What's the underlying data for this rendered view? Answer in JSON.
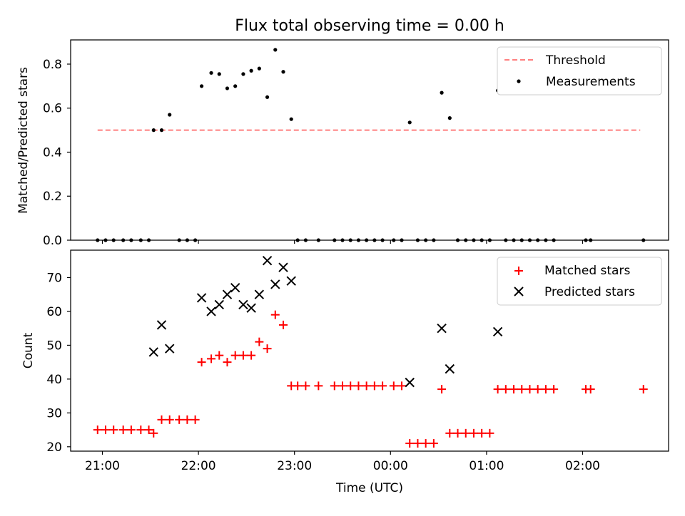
{
  "title": "Flux total observing time = 0.00 h",
  "xlabel": "Time (UTC)",
  "x_ticks": [
    "21:00",
    "22:00",
    "23:00",
    "00:00",
    "01:00",
    "02:00"
  ],
  "chart_data": [
    {
      "type": "scatter",
      "title": "Flux total observing time = 0.00 h",
      "ylabel": "Matched/Predicted stars",
      "xlabel": "",
      "ylim": [
        0,
        0.91
      ],
      "yticks": [
        "0.0",
        "0.2",
        "0.4",
        "0.6",
        "0.8"
      ],
      "legend": {
        "placement": "top-right",
        "entries": [
          "Threshold",
          "Measurements"
        ]
      },
      "threshold": {
        "name": "Threshold",
        "value": 0.5,
        "x_start": "20:57",
        "x_end": "02:36",
        "color": "#ff7f7f",
        "style": "dashed"
      },
      "series": [
        {
          "name": "Measurements",
          "marker": "dot",
          "color": "#000000",
          "points": [
            [
              "20:57",
              0
            ],
            [
              "21:02",
              0
            ],
            [
              "21:07",
              0
            ],
            [
              "21:13",
              0
            ],
            [
              "21:18",
              0
            ],
            [
              "21:24",
              0
            ],
            [
              "21:29",
              0
            ],
            [
              "21:32",
              0.5
            ],
            [
              "21:37",
              0.5
            ],
            [
              "21:42",
              0.57
            ],
            [
              "21:48",
              0
            ],
            [
              "21:53",
              0
            ],
            [
              "21:58",
              0
            ],
            [
              "22:02",
              0.7
            ],
            [
              "22:08",
              0.76
            ],
            [
              "22:13",
              0.755
            ],
            [
              "22:18",
              0.69
            ],
            [
              "22:23",
              0.7
            ],
            [
              "22:28",
              0.755
            ],
            [
              "22:33",
              0.77
            ],
            [
              "22:38",
              0.78
            ],
            [
              "22:43",
              0.65
            ],
            [
              "22:48",
              0.865
            ],
            [
              "22:53",
              0.765
            ],
            [
              "22:58",
              0.55
            ],
            [
              "23:02",
              0
            ],
            [
              "23:07",
              0
            ],
            [
              "23:15",
              0
            ],
            [
              "23:25",
              0
            ],
            [
              "23:30",
              0
            ],
            [
              "23:35",
              0
            ],
            [
              "23:40",
              0
            ],
            [
              "23:45",
              0
            ],
            [
              "23:50",
              0
            ],
            [
              "23:55",
              0
            ],
            [
              "00:02",
              0
            ],
            [
              "00:07",
              0
            ],
            [
              "00:12",
              0.535
            ],
            [
              "00:17",
              0
            ],
            [
              "00:22",
              0
            ],
            [
              "00:27",
              0
            ],
            [
              "00:32",
              0.67
            ],
            [
              "00:37",
              0.555
            ],
            [
              "00:42",
              0
            ],
            [
              "00:47",
              0
            ],
            [
              "00:52",
              0
            ],
            [
              "00:57",
              0
            ],
            [
              "01:02",
              0
            ],
            [
              "01:07",
              0.68
            ],
            [
              "01:12",
              0
            ],
            [
              "01:17",
              0
            ],
            [
              "01:22",
              0
            ],
            [
              "01:27",
              0
            ],
            [
              "01:32",
              0
            ],
            [
              "01:37",
              0
            ],
            [
              "01:42",
              0
            ],
            [
              "02:02",
              0
            ],
            [
              "02:05",
              0
            ],
            [
              "02:38",
              0
            ]
          ]
        }
      ]
    },
    {
      "type": "scatter",
      "title": "",
      "ylabel": "Count",
      "xlabel": "Time (UTC)",
      "ylim": [
        18.7,
        78.1
      ],
      "yticks": [
        "20",
        "30",
        "40",
        "50",
        "60",
        "70"
      ],
      "legend": {
        "placement": "top-right",
        "entries": [
          "Matched stars",
          "Predicted stars"
        ]
      },
      "series": [
        {
          "name": "Matched stars",
          "marker": "plus",
          "color": "#ff0000",
          "points": [
            [
              "20:57",
              25
            ],
            [
              "21:02",
              25
            ],
            [
              "21:07",
              25
            ],
            [
              "21:13",
              25
            ],
            [
              "21:18",
              25
            ],
            [
              "21:24",
              25
            ],
            [
              "21:29",
              25
            ],
            [
              "21:32",
              24
            ],
            [
              "21:37",
              28
            ],
            [
              "21:42",
              28
            ],
            [
              "21:48",
              28
            ],
            [
              "21:53",
              28
            ],
            [
              "21:58",
              28
            ],
            [
              "22:02",
              45
            ],
            [
              "22:08",
              46
            ],
            [
              "22:13",
              47
            ],
            [
              "22:18",
              45
            ],
            [
              "22:23",
              47
            ],
            [
              "22:28",
              47
            ],
            [
              "22:33",
              47
            ],
            [
              "22:38",
              51
            ],
            [
              "22:43",
              49
            ],
            [
              "22:48",
              59
            ],
            [
              "22:53",
              56
            ],
            [
              "22:58",
              38
            ],
            [
              "23:02",
              38
            ],
            [
              "23:07",
              38
            ],
            [
              "23:15",
              38
            ],
            [
              "23:25",
              38
            ],
            [
              "23:30",
              38
            ],
            [
              "23:35",
              38
            ],
            [
              "23:40",
              38
            ],
            [
              "23:45",
              38
            ],
            [
              "23:50",
              38
            ],
            [
              "23:55",
              38
            ],
            [
              "00:02",
              38
            ],
            [
              "00:07",
              38
            ],
            [
              "00:12",
              21
            ],
            [
              "00:17",
              21
            ],
            [
              "00:22",
              21
            ],
            [
              "00:27",
              21
            ],
            [
              "00:32",
              37
            ],
            [
              "00:37",
              24
            ],
            [
              "00:42",
              24
            ],
            [
              "00:47",
              24
            ],
            [
              "00:52",
              24
            ],
            [
              "00:57",
              24
            ],
            [
              "01:02",
              24
            ],
            [
              "01:07",
              37
            ],
            [
              "01:12",
              37
            ],
            [
              "01:17",
              37
            ],
            [
              "01:22",
              37
            ],
            [
              "01:27",
              37
            ],
            [
              "01:32",
              37
            ],
            [
              "01:37",
              37
            ],
            [
              "01:42",
              37
            ],
            [
              "02:02",
              37
            ],
            [
              "02:05",
              37
            ],
            [
              "02:38",
              37
            ]
          ]
        },
        {
          "name": "Predicted stars",
          "marker": "x",
          "color": "#000000",
          "points": [
            [
              "21:32",
              48
            ],
            [
              "21:37",
              56
            ],
            [
              "21:42",
              49
            ],
            [
              "22:02",
              64
            ],
            [
              "22:08",
              60
            ],
            [
              "22:13",
              62
            ],
            [
              "22:18",
              65
            ],
            [
              "22:23",
              67
            ],
            [
              "22:28",
              62
            ],
            [
              "22:33",
              61
            ],
            [
              "22:38",
              65
            ],
            [
              "22:43",
              75
            ],
            [
              "22:48",
              68
            ],
            [
              "22:53",
              73
            ],
            [
              "22:58",
              69
            ],
            [
              "00:12",
              39
            ],
            [
              "00:32",
              55
            ],
            [
              "00:37",
              43
            ],
            [
              "01:07",
              54
            ]
          ]
        }
      ]
    }
  ]
}
